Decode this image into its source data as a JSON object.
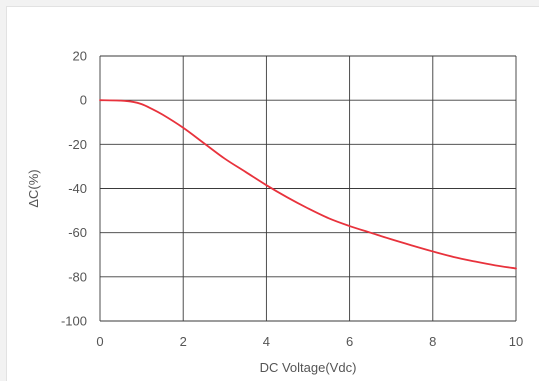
{
  "chart_data": {
    "type": "line",
    "title": "",
    "xlabel": "DC Voltage(Vdc)",
    "ylabel": "ΔC(%)",
    "xlim": [
      0,
      10
    ],
    "ylim": [
      -100,
      20
    ],
    "xticks": [
      "0",
      "2",
      "4",
      "6",
      "8",
      "10"
    ],
    "yticks": [
      "20",
      "0",
      "-20",
      "-40",
      "-60",
      "-80",
      "-100"
    ],
    "grid": true,
    "series": [
      {
        "color": "#e8323c",
        "x": [
          0,
          0.5,
          0.8,
          1.0,
          1.2,
          1.5,
          2.0,
          2.5,
          3.0,
          3.5,
          4.0,
          4.5,
          5.0,
          5.5,
          6.0,
          6.5,
          7.0,
          7.5,
          8.0,
          8.5,
          9.0,
          9.5,
          10.0
        ],
        "y": [
          0,
          -0.2,
          -0.8,
          -1.8,
          -3.5,
          -6.5,
          -12.5,
          -19.5,
          -26.5,
          -32.5,
          -38.5,
          -44,
          -49,
          -53.5,
          -57,
          -60,
          -63,
          -65.8,
          -68.5,
          -71,
          -73,
          -74.8,
          -76.2
        ]
      }
    ]
  }
}
